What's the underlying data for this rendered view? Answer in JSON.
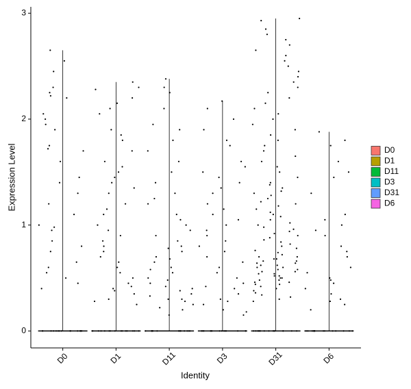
{
  "chart_data": {
    "type": "jitter-violin",
    "xlabel": "Identity",
    "ylabel": "Expression Level",
    "ylim": [
      -0.16,
      3.06
    ],
    "yticks": [
      0,
      1,
      2,
      3
    ],
    "groups": [
      {
        "name": "D0",
        "color": "#F8766D",
        "values": [
          0,
          0,
          0,
          0,
          0,
          0,
          0,
          0,
          0,
          0,
          0,
          0,
          0,
          0,
          0,
          2.65,
          2.55,
          2.45,
          2.3,
          2.25,
          2.22,
          2.2,
          2.05,
          2.0,
          1.95,
          1.9,
          1.75,
          1.72,
          1.7,
          1.6,
          1.45,
          1.4,
          1.3,
          1.2,
          1.1,
          1.0,
          0.98,
          0.95,
          0.85,
          0.8,
          0.75,
          0.65,
          0.6,
          0.55,
          0.5,
          0.45,
          0.4
        ]
      },
      {
        "name": "D1",
        "color": "#B79F00",
        "values": [
          0,
          0,
          0,
          0,
          0,
          0,
          0,
          0,
          0,
          0,
          0,
          0,
          0,
          0,
          0,
          2.35,
          2.3,
          2.28,
          2.2,
          2.15,
          2.1,
          2.05,
          1.9,
          1.85,
          1.8,
          1.7,
          1.6,
          1.55,
          1.5,
          1.45,
          1.4,
          1.35,
          1.3,
          1.2,
          1.15,
          1.1,
          1.0,
          0.95,
          0.9,
          0.85,
          0.8,
          0.75,
          0.7,
          0.65,
          0.6,
          0.55,
          0.5,
          0.45,
          0.42,
          0.4,
          0.38,
          0.35,
          0.3,
          0.28,
          0.25
        ]
      },
      {
        "name": "D11",
        "color": "#00BA38",
        "values": [
          0,
          0,
          0,
          0,
          0,
          0,
          0,
          0,
          0,
          0,
          0,
          0,
          0,
          0,
          0,
          2.38,
          2.3,
          2.25,
          2.1,
          1.95,
          1.9,
          1.8,
          1.7,
          1.6,
          1.5,
          1.4,
          1.3,
          1.25,
          1.2,
          1.1,
          1.05,
          1.0,
          0.95,
          0.9,
          0.85,
          0.8,
          0.78,
          0.75,
          0.7,
          0.68,
          0.65,
          0.6,
          0.58,
          0.55,
          0.5,
          0.48,
          0.45,
          0.42,
          0.4,
          0.38,
          0.35,
          0.33,
          0.3,
          0.3,
          0.28,
          0.25,
          0.22,
          0.2,
          0.15
        ]
      },
      {
        "name": "D3",
        "color": "#00BFC4",
        "values": [
          0,
          0,
          0,
          0,
          0,
          0,
          0,
          0,
          0,
          0,
          0,
          0,
          0,
          0,
          0,
          2.17,
          2.1,
          2.0,
          1.9,
          1.8,
          1.75,
          1.6,
          1.55,
          1.5,
          1.45,
          1.4,
          1.35,
          1.3,
          1.2,
          1.15,
          1.1,
          1.05,
          1.0,
          0.95,
          0.9,
          0.85,
          0.8,
          0.75,
          0.7,
          0.65,
          0.6,
          0.55,
          0.5,
          0.45,
          0.42,
          0.4,
          0.35,
          0.3,
          0.28,
          0.25,
          0.2,
          0.18,
          0.15
        ]
      },
      {
        "name": "D31",
        "color": "#619CFF",
        "values": [
          0,
          0,
          0,
          0,
          0,
          0,
          0,
          0,
          0,
          0,
          0,
          0,
          0,
          0,
          0,
          2.95,
          2.93,
          2.85,
          2.8,
          2.75,
          2.7,
          2.65,
          2.6,
          2.55,
          2.5,
          2.45,
          2.4,
          2.35,
          2.3,
          2.25,
          2.2,
          2.15,
          2.1,
          2.05,
          2.0,
          1.95,
          1.9,
          1.85,
          1.8,
          1.75,
          1.7,
          1.65,
          1.6,
          1.55,
          1.5,
          1.45,
          1.4,
          1.38,
          1.35,
          1.32,
          1.3,
          1.28,
          1.25,
          1.22,
          1.2,
          1.18,
          1.15,
          1.12,
          1.1,
          1.08,
          1.05,
          1.02,
          1.0,
          0.98,
          0.96,
          0.94,
          0.92,
          0.9,
          0.88,
          0.86,
          0.84,
          0.82,
          0.8,
          0.78,
          0.76,
          0.74,
          0.72,
          0.7,
          0.7,
          0.68,
          0.68,
          0.66,
          0.66,
          0.64,
          0.64,
          0.62,
          0.62,
          0.6,
          0.6,
          0.58,
          0.58,
          0.56,
          0.56,
          0.54,
          0.54,
          0.52,
          0.52,
          0.5,
          0.5,
          0.48,
          0.48,
          0.46,
          0.46,
          0.44,
          0.44,
          0.42,
          0.4,
          0.38,
          0.36,
          0.34,
          0.32,
          0.3,
          0.28
        ]
      },
      {
        "name": "D6",
        "color": "#F564E3",
        "values": [
          0,
          0,
          0,
          0,
          0,
          0,
          0,
          0,
          0,
          0,
          0,
          0,
          0,
          0,
          0,
          1.88,
          1.8,
          1.75,
          1.6,
          1.5,
          1.45,
          1.3,
          1.1,
          1.05,
          1.0,
          0.95,
          0.9,
          0.8,
          0.75,
          0.7,
          0.6,
          0.55,
          0.5,
          0.48,
          0.45,
          0.4,
          0.35,
          0.3,
          0.28,
          0.25,
          0.2
        ]
      }
    ]
  }
}
